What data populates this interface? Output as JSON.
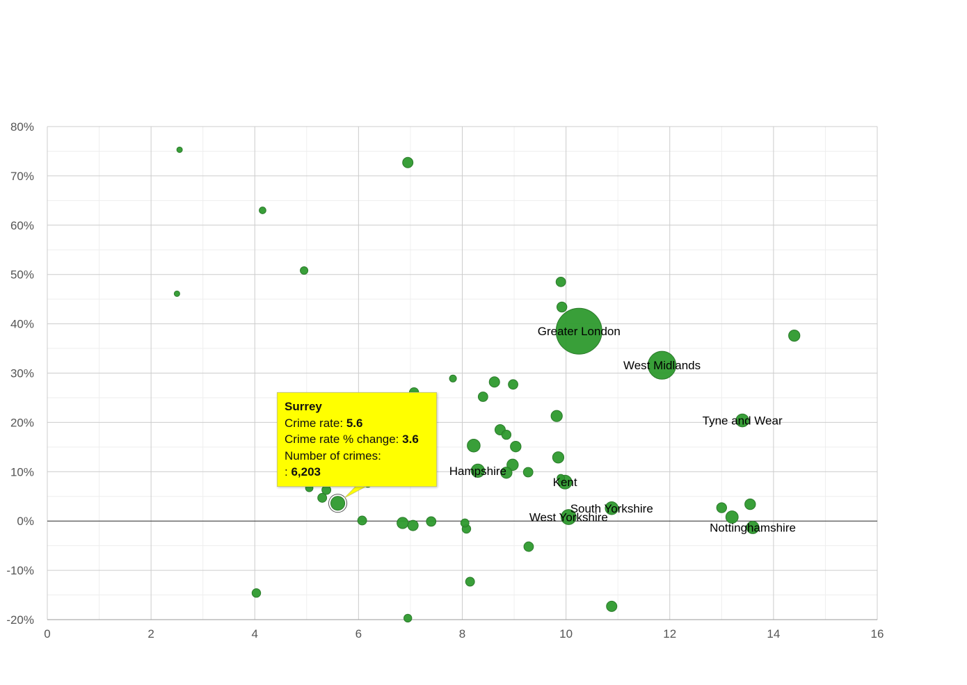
{
  "chart_data": {
    "type": "scatter",
    "subtype": "bubble",
    "title": "",
    "xlabel": "",
    "ylabel": "",
    "xlim": [
      0,
      16
    ],
    "ylim": [
      -20,
      80
    ],
    "x_ticks": [
      0,
      2,
      4,
      6,
      8,
      10,
      12,
      14,
      16
    ],
    "y_ticks": [
      -20,
      -10,
      0,
      10,
      20,
      30,
      40,
      50,
      60,
      70,
      80
    ],
    "y_tick_labels": [
      "-20%",
      "-10%",
      "0%",
      "10%",
      "20%",
      "30%",
      "40%",
      "50%",
      "60%",
      "70%",
      "80%"
    ],
    "grid": true,
    "color": "#2e9a2e",
    "points": [
      {
        "x": 2.55,
        "y": 75.3,
        "crimes": 300
      },
      {
        "x": 4.15,
        "y": 63.0,
        "crimes": 700
      },
      {
        "x": 4.95,
        "y": 50.8,
        "crimes": 1100
      },
      {
        "x": 2.5,
        "y": 46.1,
        "crimes": 300
      },
      {
        "x": 6.95,
        "y": 72.7,
        "crimes": 2800
      },
      {
        "x": 9.9,
        "y": 48.5,
        "crimes": 2200
      },
      {
        "x": 9.92,
        "y": 43.4,
        "crimes": 2500
      },
      {
        "x": 10.25,
        "y": 38.5,
        "crimes": 95000,
        "label": "Greater London"
      },
      {
        "x": 11.85,
        "y": 31.6,
        "crimes": 32000,
        "label": "West Midlands"
      },
      {
        "x": 14.4,
        "y": 37.6,
        "crimes": 3500
      },
      {
        "x": 13.4,
        "y": 20.4,
        "crimes": 5000,
        "label": "Tyne and Wear"
      },
      {
        "x": 7.82,
        "y": 28.9,
        "crimes": 800
      },
      {
        "x": 8.62,
        "y": 28.2,
        "crimes": 2800
      },
      {
        "x": 8.98,
        "y": 27.7,
        "crimes": 2200
      },
      {
        "x": 7.07,
        "y": 26.1,
        "crimes": 2000
      },
      {
        "x": 8.4,
        "y": 25.2,
        "crimes": 2200
      },
      {
        "x": 9.82,
        "y": 21.3,
        "crimes": 3500
      },
      {
        "x": 8.73,
        "y": 18.5,
        "crimes": 2800
      },
      {
        "x": 8.85,
        "y": 17.5,
        "crimes": 2000
      },
      {
        "x": 8.22,
        "y": 15.3,
        "crimes": 5000
      },
      {
        "x": 9.03,
        "y": 15.1,
        "crimes": 3000
      },
      {
        "x": 9.85,
        "y": 12.9,
        "crimes": 3500
      },
      {
        "x": 8.97,
        "y": 11.4,
        "crimes": 3600
      },
      {
        "x": 8.3,
        "y": 10.2,
        "crimes": 5500,
        "label": "Hampshire"
      },
      {
        "x": 8.85,
        "y": 9.8,
        "crimes": 3500
      },
      {
        "x": 9.27,
        "y": 9.9,
        "crimes": 2200
      },
      {
        "x": 9.9,
        "y": 8.7,
        "crimes": 1000
      },
      {
        "x": 9.98,
        "y": 7.9,
        "crimes": 6000,
        "label": "Kent"
      },
      {
        "x": 5.05,
        "y": 6.7,
        "crimes": 1000
      },
      {
        "x": 5.38,
        "y": 6.3,
        "crimes": 1800
      },
      {
        "x": 6.18,
        "y": 7.6,
        "crimes": 1000
      },
      {
        "x": 5.3,
        "y": 4.7,
        "crimes": 1800
      },
      {
        "x": 5.6,
        "y": 3.6,
        "crimes": 6203,
        "label": "Surrey",
        "highlight": true
      },
      {
        "x": 10.88,
        "y": 2.6,
        "crimes": 5000,
        "label": "South Yorkshire"
      },
      {
        "x": 10.05,
        "y": 0.8,
        "crimes": 7500,
        "label": "West Yorkshire"
      },
      {
        "x": 13.0,
        "y": 2.7,
        "crimes": 2500
      },
      {
        "x": 13.55,
        "y": 3.4,
        "crimes": 3000
      },
      {
        "x": 13.2,
        "y": 0.8,
        "crimes": 4500
      },
      {
        "x": 13.6,
        "y": -1.3,
        "crimes": 4500,
        "label": "Nottinghamshire"
      },
      {
        "x": 6.07,
        "y": 0.1,
        "crimes": 1800
      },
      {
        "x": 6.85,
        "y": -0.4,
        "crimes": 3500
      },
      {
        "x": 7.05,
        "y": -0.9,
        "crimes": 2800
      },
      {
        "x": 7.4,
        "y": -0.1,
        "crimes": 2200
      },
      {
        "x": 8.05,
        "y": -0.4,
        "crimes": 1400
      },
      {
        "x": 8.08,
        "y": -1.6,
        "crimes": 1600
      },
      {
        "x": 9.28,
        "y": -5.2,
        "crimes": 2200
      },
      {
        "x": 8.15,
        "y": -12.3,
        "crimes": 1800
      },
      {
        "x": 4.03,
        "y": -14.6,
        "crimes": 1600
      },
      {
        "x": 10.88,
        "y": -17.3,
        "crimes": 2800
      },
      {
        "x": 6.95,
        "y": -19.7,
        "crimes": 1200
      }
    ],
    "tooltip": {
      "name": "Surrey",
      "rate_label": "Crime rate:",
      "rate_value": "5.6",
      "change_label": "Crime rate % change:",
      "change_value": "3.6",
      "crimes_label": "Number of crimes:",
      "crimes_prefix": ":",
      "crimes_value": "6,203"
    }
  }
}
